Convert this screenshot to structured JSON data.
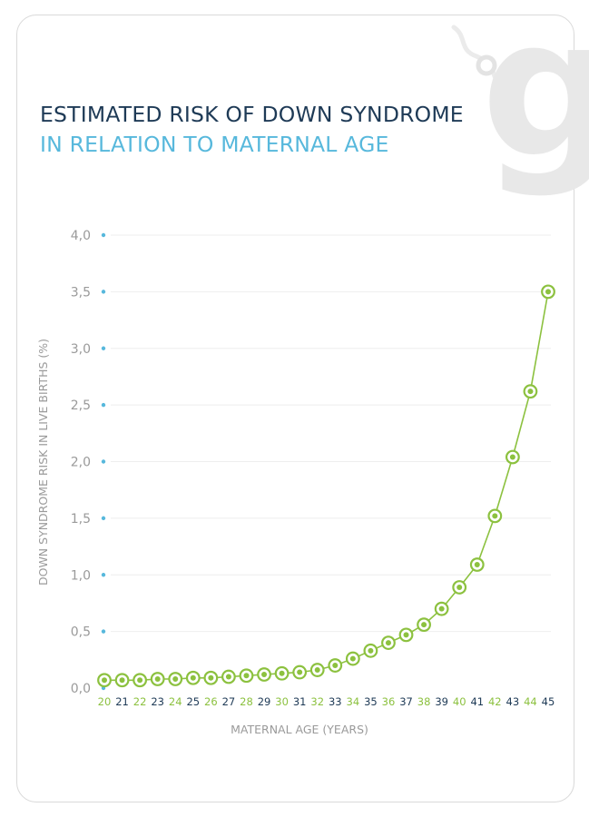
{
  "header": {
    "title_line1": "ESTIMATED RISK OF DOWN SYNDROME",
    "title_line2": "IN RELATION TO MATERNAL AGE"
  },
  "logo": {
    "name": "g-logo",
    "letter": "g"
  },
  "colors": {
    "title_dark": "#1e3a56",
    "title_light": "#57b8dc",
    "line_green": "#8cc13f",
    "tick_dot_blue": "#57b8dc",
    "x_tick_green": "#8cc13f",
    "x_tick_navy": "#1e3a56",
    "grid": "#eeeeee",
    "axis_text": "#9a9a9a",
    "logo_gray": "#e8e8e8"
  },
  "chart_data": {
    "type": "line",
    "title": "ESTIMATED RISK OF DOWN SYNDROME IN RELATION TO MATERNAL AGE",
    "xlabel": "MATERNAL AGE (YEARS)",
    "ylabel": "DOWN SYNDROME RISK IN LIVE BIRTHS (%)",
    "ylim": [
      0,
      4.0
    ],
    "y_ticks": [
      "0,0",
      "0,5",
      "1,0",
      "1,5",
      "2,0",
      "2,5",
      "3,0",
      "3,5",
      "4,0"
    ],
    "grid": true,
    "x": [
      20,
      21,
      22,
      23,
      24,
      25,
      26,
      27,
      28,
      29,
      30,
      31,
      32,
      33,
      34,
      35,
      36,
      37,
      38,
      39,
      40,
      41,
      42,
      43,
      44,
      45
    ],
    "x_tick_colors": [
      "green",
      "navy",
      "green",
      "navy",
      "green",
      "navy",
      "green",
      "navy",
      "green",
      "navy",
      "green",
      "navy",
      "green",
      "navy",
      "green",
      "navy",
      "green",
      "navy",
      "green",
      "navy",
      "green",
      "navy",
      "green",
      "navy",
      "green",
      "navy"
    ],
    "series": [
      {
        "values": [
          0.07,
          0.07,
          0.07,
          0.08,
          0.08,
          0.09,
          0.09,
          0.1,
          0.11,
          0.12,
          0.13,
          0.14,
          0.16,
          0.2,
          0.26,
          0.33,
          0.4,
          0.47,
          0.56,
          0.7,
          0.89,
          1.09,
          1.52,
          2.04,
          2.62,
          3.5
        ]
      }
    ]
  }
}
